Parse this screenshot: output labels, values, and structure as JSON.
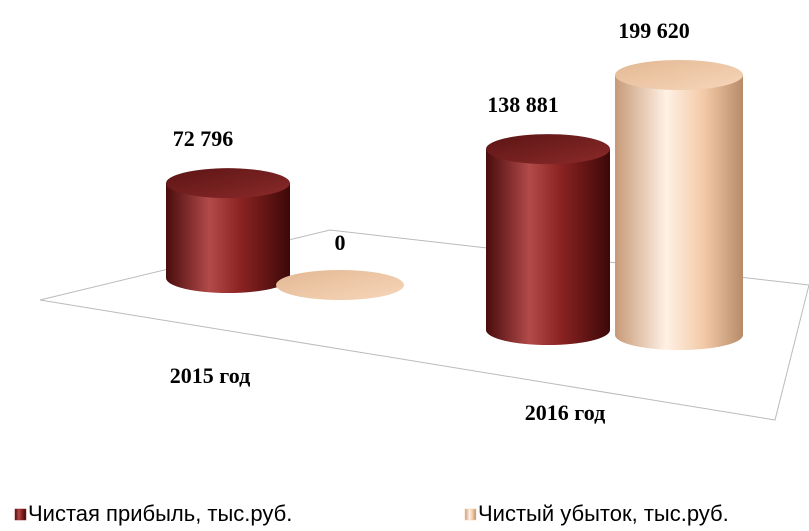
{
  "chart_data": {
    "type": "bar3d",
    "categories": [
      "2015 год",
      "2016 год"
    ],
    "series": [
      {
        "name": "Чистая прибыль, тыс.руб.",
        "color": "#8b2323",
        "values": [
          72796,
          138881
        ],
        "value_labels": [
          "72 796",
          "138 881"
        ]
      },
      {
        "name": "Чистый убыток, тыс.руб.",
        "color": "#f2c9a6",
        "values": [
          0,
          199620
        ],
        "value_labels": [
          "0",
          "199 620"
        ]
      }
    ],
    "legend": "bottom"
  }
}
